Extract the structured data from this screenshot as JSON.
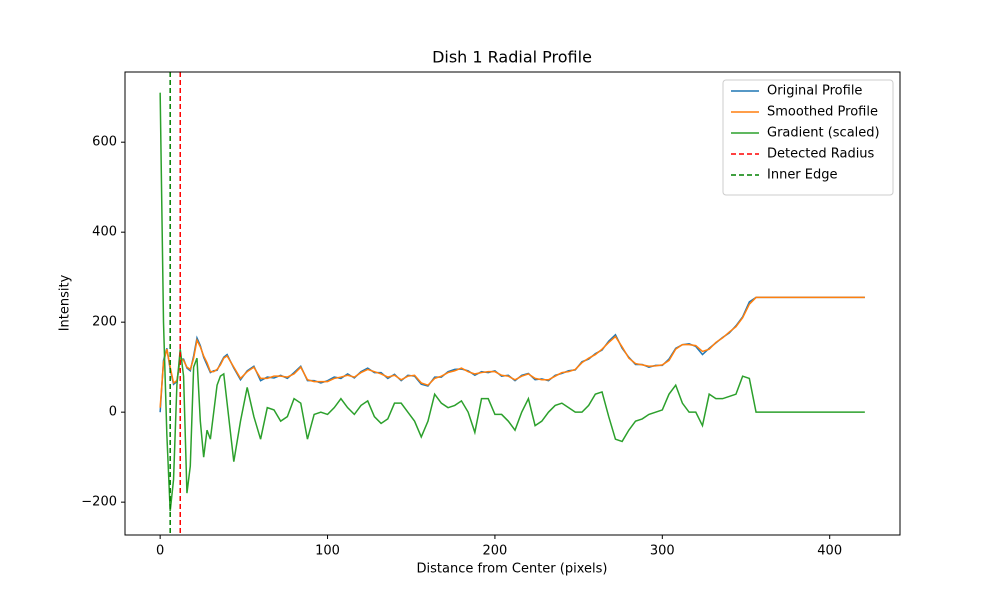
{
  "chart_data": {
    "type": "line",
    "title": "Dish 1 Radial Profile",
    "x_label": "Distance from Center (pixels)",
    "y_label": "Intensity",
    "x": [
      0,
      2,
      4,
      6,
      8,
      10,
      12,
      14,
      16,
      18,
      20,
      22,
      24,
      26,
      28,
      30,
      32,
      34,
      36,
      38,
      40,
      44,
      48,
      52,
      56,
      60,
      64,
      68,
      72,
      76,
      80,
      84,
      88,
      92,
      96,
      100,
      104,
      108,
      112,
      116,
      120,
      124,
      128,
      132,
      136,
      140,
      144,
      148,
      152,
      156,
      160,
      164,
      168,
      172,
      176,
      180,
      184,
      188,
      192,
      196,
      200,
      204,
      208,
      212,
      216,
      220,
      224,
      228,
      232,
      236,
      240,
      244,
      248,
      252,
      256,
      260,
      264,
      268,
      272,
      276,
      280,
      284,
      288,
      292,
      296,
      300,
      304,
      308,
      312,
      316,
      320,
      324,
      328,
      332,
      336,
      340,
      344,
      348,
      352,
      356,
      421
    ],
    "series": [
      {
        "name": "Original Profile",
        "color": "#1f77b4",
        "style": "solid",
        "values": [
          0,
          115,
          142,
          95,
          62,
          68,
          118,
          118,
          98,
          92,
          125,
          165,
          148,
          122,
          105,
          88,
          92,
          93,
          108,
          122,
          128,
          98,
          72,
          92,
          102,
          70,
          78,
          76,
          82,
          75,
          88,
          102,
          70,
          70,
          65,
          70,
          78,
          75,
          85,
          76,
          90,
          98,
          88,
          88,
          75,
          84,
          70,
          82,
          80,
          62,
          58,
          78,
          78,
          90,
          95,
          96,
          92,
          82,
          90,
          88,
          92,
          80,
          82,
          70,
          82,
          86,
          72,
          74,
          70,
          82,
          86,
          92,
          94,
          112,
          118,
          130,
          138,
          158,
          172,
          142,
          122,
          106,
          106,
          100,
          104,
          104,
          118,
          142,
          150,
          152,
          146,
          128,
          142,
          154,
          166,
          176,
          192,
          212,
          245,
          255,
          255
        ]
      },
      {
        "name": "Smoothed Profile",
        "color": "#ff7f0e",
        "style": "solid",
        "values": [
          10,
          110,
          140,
          100,
          65,
          70,
          120,
          115,
          100,
          95,
          120,
          160,
          145,
          125,
          110,
          90,
          90,
          95,
          105,
          120,
          125,
          100,
          75,
          90,
          100,
          75,
          75,
          80,
          80,
          78,
          85,
          100,
          72,
          68,
          68,
          68,
          75,
          78,
          82,
          78,
          88,
          95,
          90,
          85,
          78,
          82,
          72,
          80,
          82,
          65,
          60,
          75,
          80,
          88,
          92,
          98,
          90,
          85,
          88,
          90,
          90,
          82,
          80,
          72,
          80,
          85,
          75,
          72,
          72,
          80,
          88,
          90,
          95,
          110,
          120,
          128,
          140,
          155,
          168,
          145,
          120,
          108,
          105,
          102,
          103,
          105,
          115,
          140,
          150,
          150,
          148,
          135,
          140,
          155,
          165,
          178,
          190,
          210,
          240,
          255,
          255
        ]
      },
      {
        "name": "Gradient (scaled)",
        "color": "#2ca02c",
        "style": "solid",
        "values": [
          710,
          200,
          -50,
          -220,
          -150,
          60,
          140,
          80,
          -180,
          -120,
          100,
          120,
          -20,
          -100,
          -40,
          -60,
          0,
          60,
          80,
          85,
          20,
          -110,
          -20,
          55,
          -10,
          -60,
          10,
          5,
          -20,
          -10,
          30,
          20,
          -60,
          -5,
          0,
          -5,
          10,
          30,
          10,
          -5,
          15,
          25,
          -10,
          -25,
          -15,
          20,
          20,
          0,
          -20,
          -55,
          -20,
          40,
          20,
          10,
          15,
          25,
          0,
          -45,
          30,
          30,
          -5,
          -5,
          -20,
          -40,
          0,
          30,
          -30,
          -20,
          0,
          15,
          20,
          10,
          0,
          0,
          15,
          40,
          45,
          -10,
          -60,
          -65,
          -40,
          -20,
          -15,
          -5,
          0,
          5,
          40,
          60,
          20,
          0,
          0,
          -30,
          40,
          30,
          30,
          35,
          40,
          80,
          75,
          0,
          0
        ]
      }
    ],
    "vlines": [
      {
        "name": "Detected Radius",
        "color": "red",
        "x": 12
      },
      {
        "name": "Inner Edge",
        "color": "green",
        "x": 6
      }
    ],
    "xlim": [
      -21,
      442
    ],
    "ylim": [
      -273,
      756
    ],
    "xticks": [
      0,
      100,
      200,
      300,
      400
    ],
    "yticks": [
      {
        "value": -200,
        "label": "−200"
      },
      0,
      200,
      400,
      600
    ],
    "legend": "upper right"
  }
}
